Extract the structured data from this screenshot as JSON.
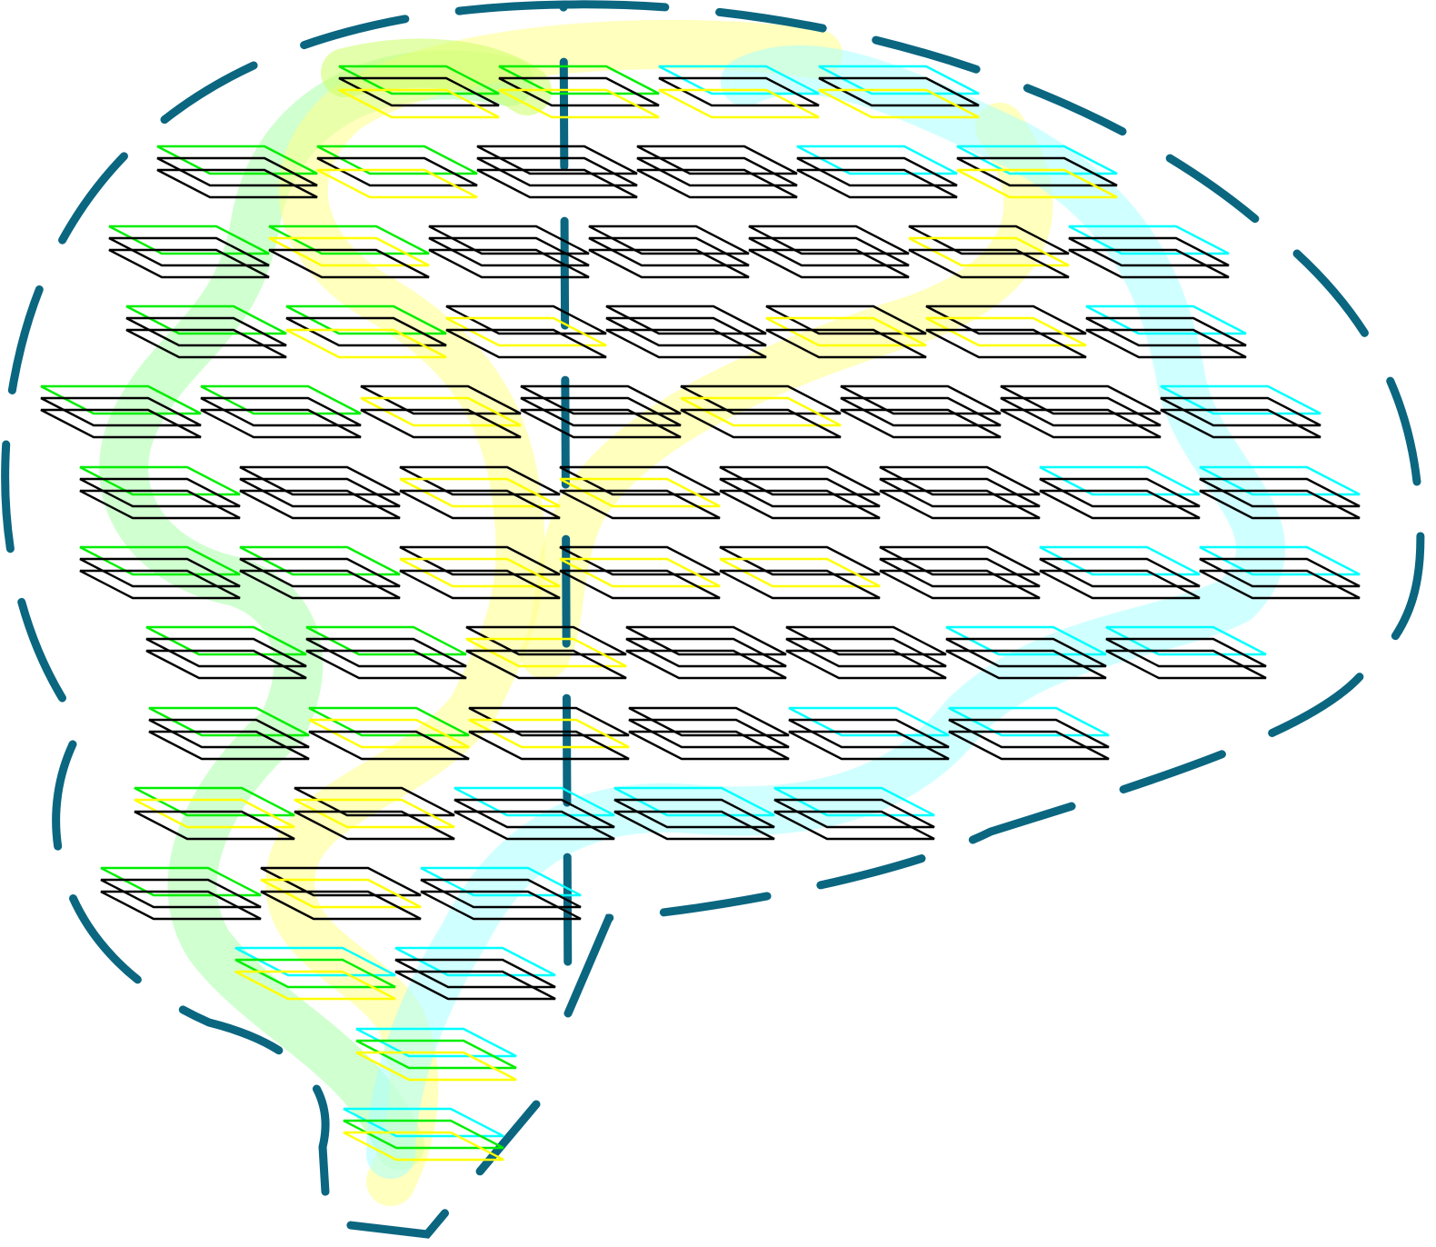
{
  "colors": {
    "outline": "#0b6680",
    "green": "#00ee00",
    "yellow": "#ffff00",
    "cyan": "#00ffff",
    "black": "#000000",
    "green_path": "#aaffaa",
    "yellow_path": "#ffff88",
    "cyan_path": "#aaffff",
    "lime_path": "#ccff66",
    "background": "#ffffff"
  },
  "legend_layers": [
    "green",
    "yellow",
    "cyan"
  ],
  "rows": [
    [
      [
        "gk",
        "bk",
        "yk"
      ],
      [
        "gk",
        "bk",
        "yk"
      ],
      [
        "ck",
        "bk",
        "yk"
      ],
      [
        "ck",
        "bk",
        "yk"
      ]
    ],
    [
      [
        "gk",
        "bk",
        "bk"
      ],
      [
        "gk",
        "bk",
        "yk"
      ],
      [
        "bk",
        "bk",
        "bk"
      ],
      [
        "bk",
        "bk",
        "bk"
      ],
      [
        "ck",
        "bk",
        "bk"
      ],
      [
        "ck",
        "bk",
        "yk"
      ]
    ],
    [
      [
        "gk",
        "bk",
        "bk"
      ],
      [
        "gk",
        "yk",
        "bk"
      ],
      [
        "bk",
        "bk",
        "bk"
      ],
      [
        "bk",
        "bk",
        "bk"
      ],
      [
        "bk",
        "bk",
        "bk"
      ],
      [
        "bk",
        "yk",
        "bk"
      ],
      [
        "ck",
        "bk",
        "bk"
      ]
    ],
    [
      [
        "gk",
        "bk",
        "bk"
      ],
      [
        "gk",
        "bk",
        "yk"
      ],
      [
        "bk",
        "yk",
        "bk"
      ],
      [
        "bk",
        "bk",
        "bk"
      ],
      [
        "bk",
        "yk",
        "bk"
      ],
      [
        "bk",
        "yk",
        "bk"
      ],
      [
        "ck",
        "bk",
        "bk"
      ]
    ],
    [
      [
        "gk",
        "bk",
        "bk"
      ],
      [
        "gk",
        "bk",
        "bk"
      ],
      [
        "bk",
        "yk",
        "bk"
      ],
      [
        "bk",
        "bk",
        "bk"
      ],
      [
        "bk",
        "yk",
        "bk"
      ],
      [
        "bk",
        "bk",
        "bk"
      ],
      [
        "bk",
        "bk",
        "bk"
      ],
      [
        "ck",
        "bk",
        "bk"
      ]
    ],
    [
      [
        "gk",
        "bk",
        "bk"
      ],
      [
        "bk",
        "bk",
        "bk"
      ],
      [
        "bk",
        "yk",
        "bk"
      ],
      [
        "bk",
        "yk",
        "bk"
      ],
      [
        "bk",
        "bk",
        "bk"
      ],
      [
        "bk",
        "bk",
        "bk"
      ],
      [
        "ck",
        "bk",
        "bk"
      ],
      [
        "ck",
        "bk",
        "bk"
      ]
    ],
    [
      [
        "gk",
        "bk",
        "bk"
      ],
      [
        "gk",
        "bk",
        "bk"
      ],
      [
        "bk",
        "yk",
        "bk"
      ],
      [
        "bk",
        "yk",
        "bk"
      ],
      [
        "bk",
        "yk",
        "bk"
      ],
      [
        "bk",
        "bk",
        "bk"
      ],
      [
        "ck",
        "bk",
        "bk"
      ],
      [
        "ck",
        "bk",
        "bk"
      ]
    ],
    [
      [
        "gk",
        "bk",
        "bk"
      ],
      [
        "gk",
        "bk",
        "bk"
      ],
      [
        "bk",
        "yk",
        "bk"
      ],
      [
        "bk",
        "bk",
        "bk"
      ],
      [
        "bk",
        "bk",
        "bk"
      ],
      [
        "ck",
        "bk",
        "bk"
      ],
      [
        "ck",
        "bk",
        "bk"
      ]
    ],
    [
      [
        "gk",
        "bk",
        "bk"
      ],
      [
        "gk",
        "yk",
        "bk"
      ],
      [
        "bk",
        "yk",
        "bk"
      ],
      [
        "bk",
        "bk",
        "bk"
      ],
      [
        "ck",
        "bk",
        "bk"
      ],
      [
        "ck",
        "bk",
        "bk"
      ]
    ],
    [
      [
        "gk",
        "yk",
        "bk"
      ],
      [
        "bk",
        "yk",
        "bk"
      ],
      [
        "ck",
        "bk",
        "bk"
      ],
      [
        "ck",
        "bk",
        "bk"
      ],
      [
        "ck",
        "bk",
        "bk"
      ]
    ],
    [
      [
        "gk",
        "bk",
        "bk"
      ],
      [
        "bk",
        "yk",
        "bk"
      ],
      [
        "ck",
        "bk",
        "bk"
      ]
    ],
    [
      [
        "ck",
        "gk",
        "yk"
      ],
      [
        "ck",
        "bk",
        "bk"
      ]
    ],
    [
      [
        "ck",
        "gk",
        "yk"
      ]
    ],
    [
      [
        "ck",
        "gk",
        "yk"
      ]
    ]
  ]
}
